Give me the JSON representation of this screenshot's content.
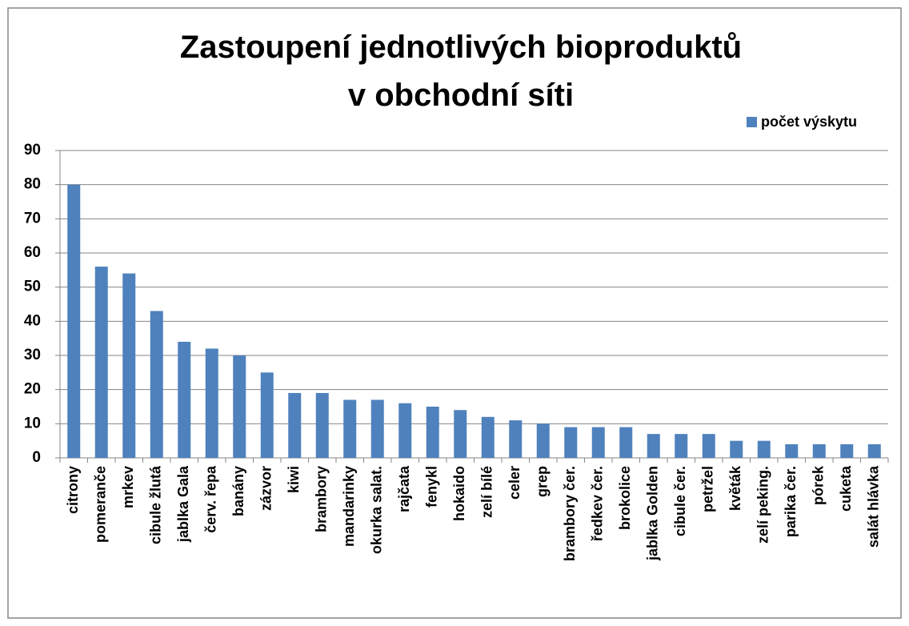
{
  "chart_data": {
    "type": "bar",
    "title": [
      "Zastoupení jednotlivých bioproduktů",
      "v obchodní síti"
    ],
    "categories": [
      "citrony",
      "pomeranče",
      "mrkev",
      "cibule žlutá",
      "jablka Gala",
      "červ. řepa",
      "banány",
      "zázvor",
      "kiwi",
      "brambory",
      "mandarinky",
      "okurka salat.",
      "rajčata",
      "fenykl",
      "hokaido",
      "zelí bílé",
      "celer",
      "grep",
      "brambory čer.",
      "ředkev čer.",
      "brokolice",
      "jablka Golden",
      "cibule čer.",
      "petržel",
      "květák",
      "zelí peking.",
      "parika čer.",
      "pórek",
      "cuketa",
      "salát hlávka"
    ],
    "series": [
      {
        "name": "počet výskytu",
        "color": "#4f81bd",
        "values": [
          80,
          56,
          54,
          43,
          34,
          32,
          30,
          25,
          19,
          19,
          17,
          17,
          16,
          15,
          14,
          12,
          11,
          10,
          9,
          9,
          9,
          7,
          7,
          7,
          5,
          5,
          4,
          4,
          4,
          4
        ]
      }
    ],
    "ylim": [
      0,
      90
    ],
    "yticks": [
      0,
      10,
      20,
      30,
      40,
      50,
      60,
      70,
      80,
      90
    ],
    "grid": true,
    "legend": "top-right"
  }
}
